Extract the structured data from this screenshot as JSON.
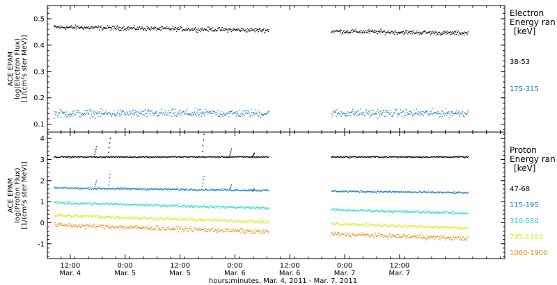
{
  "chart_data": [
    {
      "type": "scatter",
      "panel": "electron",
      "ylabel_lines": [
        "ACE EPAM",
        "log(Electron Flux)",
        "[1/(cm²s ster MeV)]"
      ],
      "ylim": [
        0.07,
        0.55
      ],
      "yticks": [
        0.1,
        0.2,
        0.3,
        0.4,
        0.5
      ],
      "ytick_labels": [
        "0.1",
        "0.2",
        "0.3",
        "0.4",
        "0.5"
      ],
      "legend_title": [
        "Electron",
        "Energy ran",
        "[keV]"
      ],
      "legend_position": "right",
      "gap_hours": [
        43.5,
        57.0
      ],
      "series": [
        {
          "name": "38-53",
          "color": "#000000",
          "level": 0.455,
          "start": 0.468,
          "end": 0.445,
          "noise": 0.012
        },
        {
          "name": "175-315",
          "color": "#1a7acc",
          "level": 0.14,
          "start": 0.14,
          "end": 0.142,
          "noise": 0.022
        }
      ]
    },
    {
      "type": "scatter",
      "panel": "proton",
      "ylabel_lines": [
        "ACE EPAM",
        "log(Proton Flux)",
        "[1/(cm²s ster MeV)]"
      ],
      "ylim": [
        -1.7,
        4.3
      ],
      "yticks": [
        -1,
        0,
        1,
        2,
        3,
        4
      ],
      "ytick_labels": [
        "-1",
        "0",
        "1",
        "2",
        "3",
        "4"
      ],
      "legend_title": [
        "Proton",
        "Energy ran",
        "[keV]"
      ],
      "legend_position": "right",
      "gap_hours": [
        43.5,
        57.0
      ],
      "series": [
        {
          "name": "47-68",
          "color": "#000000",
          "start": 3.12,
          "end": 3.12,
          "noise": 0.05
        },
        {
          "name": "115-195",
          "color": "#1a7acc",
          "start": 1.65,
          "end": 1.42,
          "noise": 0.07
        },
        {
          "name": "310-580",
          "color": "#22d6c8",
          "start": 0.95,
          "end": 0.45,
          "noise": 0.09
        },
        {
          "name": "795-1193",
          "color": "#d6e81a",
          "start": 0.35,
          "end": -0.25,
          "noise": 0.12
        },
        {
          "name": "1060-1900",
          "color": "#ee8a10",
          "start": -0.1,
          "end": -0.75,
          "noise": 0.16
        }
      ],
      "spikes": [
        {
          "hour": 5.5,
          "values": [
            3.6,
            2.0
          ]
        },
        {
          "hour": 8.5,
          "values": [
            4.0,
            2.3
          ]
        },
        {
          "hour": 29.0,
          "values": [
            4.2,
            2.2
          ]
        },
        {
          "hour": 35.0,
          "values": [
            3.5,
            1.8
          ]
        },
        {
          "hour": 40.0,
          "values": [
            3.3,
            1.6
          ]
        }
      ]
    }
  ],
  "xaxis": {
    "xlim_hours": [
      -5,
      95
    ],
    "ticks": [
      {
        "hour": 0,
        "label1": "12:00",
        "label2": "Mar. 4"
      },
      {
        "hour": 12,
        "label1": "0:00",
        "label2": "Mar. 5"
      },
      {
        "hour": 24,
        "label1": "12:00",
        "label2": "Mar. 5"
      },
      {
        "hour": 36,
        "label1": "0:00",
        "label2": "Mar. 6"
      },
      {
        "hour": 48,
        "label1": "12:00",
        "label2": "Mar. 6"
      },
      {
        "hour": 60,
        "label1": "0:00",
        "label2": "Mar. 7"
      },
      {
        "hour": 72,
        "label1": "12:00",
        "label2": "Mar. 7"
      }
    ],
    "label": "hours:minutes, Mar.  4, 2011 - Mar.  7, 2011"
  }
}
